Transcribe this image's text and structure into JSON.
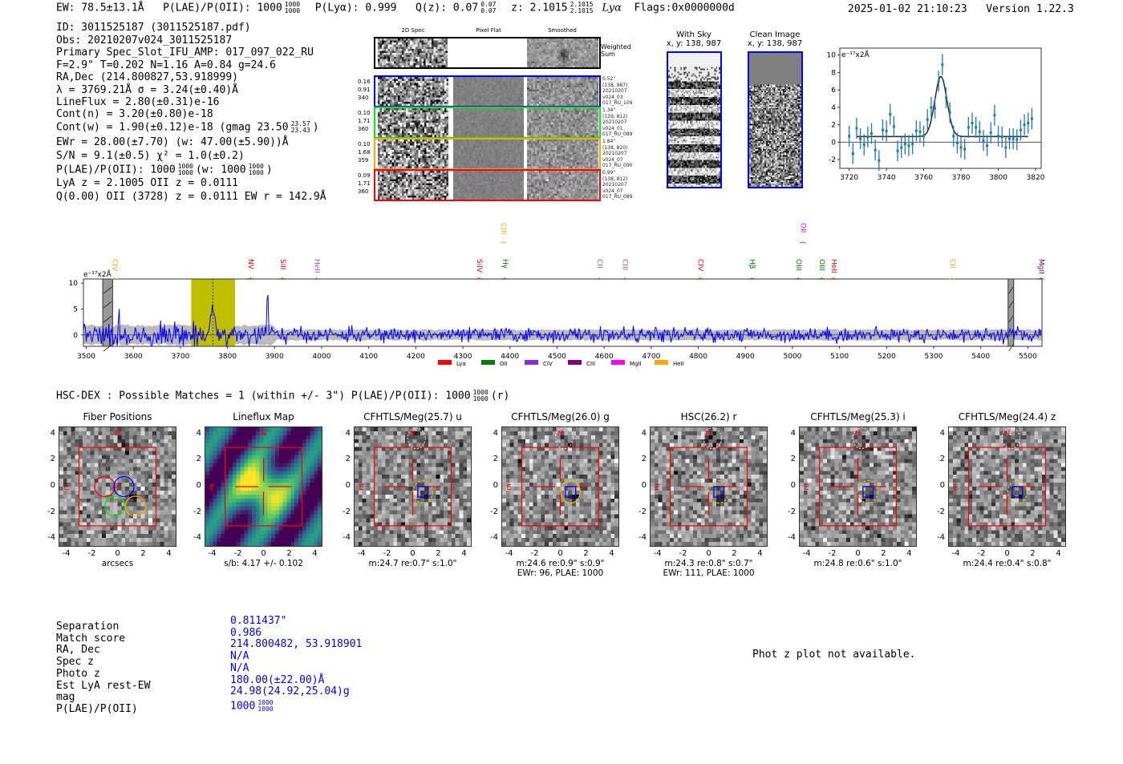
{
  "header": {
    "ew": "EW: 78.5±13.1Å",
    "plae_label": "P(LAE)/P(OII): 1000",
    "plae_sup": "1000",
    "plae_sub": "1000",
    "plya": "P(Lyα): 0.999",
    "qz_label": "Q(z): 0.07",
    "qz_sup": "0.07",
    "qz_sub": "0.07",
    "z_label": "z: 2.1015",
    "z_sup": "2.1015",
    "z_sub": "2.1015",
    "line": "Lyα",
    "flags": "Flags:0x0000000d",
    "datetime": "2025-01-02 21:10:23",
    "version": "Version 1.22.3"
  },
  "info": {
    "id": "ID: 3011525187 (3011525187.pdf)",
    "obs": "Obs: 20210207v024_3011525187",
    "primary": "Primary Spec_Slot_IFU_AMP: 017_097_022_RU",
    "ftna": "F=2.9\"  T=0.202  N=1.16  A=0.84  g=24.6",
    "radec": "RA,Dec (214.800827,53.918999)",
    "lambda": "λ = 3769.21Å   σ = 3.24(±0.40)Å",
    "lineflux": "LineFlux = 2.80(±0.31)e-16",
    "contn": "Cont(n) = 3.20(±0.80)e-18",
    "contw": "Cont(w) = 1.90(±0.12)e-18 (gmag 23.50",
    "contw_sup": "23.57",
    "contw_sub": "23.43",
    "contw_post": ")",
    "ewr": "EWr = 28.00(±7.70) (w: 47.00(±5.90))Å",
    "sn": "S/N = 9.1(±0.5)   χ² = 1.0(±0.2)",
    "plae": "P(LAE)/P(OII): 1000",
    "plae_sup": "1000",
    "plae_sub": "1000",
    "plae_mid": "(w: 1000",
    "plae_sup2": "1000",
    "plae_sub2": "1000",
    "plae_post": ")",
    "lyaz": "LyA z = 2.1005  OII z = 0.0111",
    "q": "Q(0.00) OII (3728) z = 0.0111  EW r = 142.9Å"
  },
  "spec2d": {
    "headers": [
      "2D Spec",
      "Pixel Flat",
      "Smoothed"
    ],
    "weighted_label": [
      "Weighted",
      "Sum"
    ],
    "rows": [
      {
        "color": "#0000ff",
        "left": [
          "0.16",
          "0.91",
          "340"
        ],
        "right": [
          "0.52\"",
          "(138, 987)",
          "20210207",
          "v024_03",
          "017_RU_109"
        ]
      },
      {
        "color": "#00ee00",
        "left": [
          "0.10",
          "1.71",
          "360"
        ],
        "right": [
          "1.34\"",
          "(139, 812)",
          "20210207",
          "v024_01",
          "017_RU_089"
        ]
      },
      {
        "color": "#ffa500",
        "left": [
          "0.10",
          "1.68",
          "359"
        ],
        "right": [
          "1.84\"",
          "(138, 820)",
          "20210207",
          "v024_07",
          "017_RU_090"
        ]
      },
      {
        "color": "#ff0000",
        "left": [
          "0.09",
          "1.71",
          "360"
        ],
        "right": [
          "0.99\"",
          "(138, 812)",
          "20210207",
          "v024_07",
          "017_RU_089"
        ]
      }
    ]
  },
  "ccd": {
    "with_sky": [
      "With Sky",
      "x, y: 138, 987"
    ],
    "clean": [
      "Clean Image",
      "x, y: 138, 987"
    ]
  },
  "chart_data": [
    {
      "type": "scatter",
      "title": "",
      "ylabel": "e⁻¹⁷x2Å",
      "xlim": [
        3715,
        3823
      ],
      "ylim": [
        -3,
        10.8
      ],
      "xticks": [
        "3720",
        "3740",
        "3760",
        "3780",
        "3800",
        "3820"
      ],
      "yticks": [
        "-2",
        "0",
        "2",
        "4",
        "6",
        "8",
        "10"
      ],
      "x": [
        3720,
        3722,
        3724,
        3726,
        3728,
        3730,
        3732,
        3734,
        3736,
        3738,
        3740,
        3742,
        3744,
        3746,
        3748,
        3750,
        3752,
        3754,
        3756,
        3758,
        3760,
        3762,
        3764,
        3766,
        3768,
        3770,
        3772,
        3774,
        3776,
        3778,
        3780,
        3782,
        3784,
        3786,
        3788,
        3790,
        3792,
        3794,
        3796,
        3798,
        3800,
        3802,
        3804,
        3806,
        3808,
        3810,
        3812,
        3814,
        3816,
        3818
      ],
      "y": [
        0.7,
        -1.3,
        1.6,
        0.4,
        -0.3,
        0.6,
        1.0,
        -0.9,
        -2.1,
        1.4,
        1.3,
        3.2,
        1.8,
        -1.0,
        -0.6,
        -0.2,
        -0.4,
        -0.2,
        1.3,
        1.2,
        0.7,
        2.6,
        4.0,
        3.9,
        7.0,
        8.9,
        5.1,
        3.4,
        0.7,
        -0.1,
        -0.6,
        -0.8,
        1.7,
        2.2,
        1.7,
        1.2,
        0.2,
        -0.4,
        1.1,
        3.1,
        0.7,
        0.6,
        -0.6,
        0.4,
        0.4,
        0.3,
        1.4,
        2.0,
        2.2,
        2.7
      ],
      "yerr": 1.2,
      "fit": {
        "center": 3769.21,
        "sigma": 3.24,
        "amplitude": 6.9,
        "continuum": 0.65,
        "range": [
          3724,
          3816
        ]
      }
    },
    {
      "type": "line",
      "ylabel": "e⁻¹⁷x2Å",
      "xlim": [
        3494,
        5530
      ],
      "ylim": [
        -2.2,
        10.8
      ],
      "xticks": [
        "3500",
        "3600",
        "3700",
        "3800",
        "3900",
        "4000",
        "4100",
        "4200",
        "4300",
        "4400",
        "4500",
        "4600",
        "4700",
        "4800",
        "4900",
        "5000",
        "5100",
        "5200",
        "5300",
        "5400",
        "5500"
      ],
      "yticks": [
        "0",
        "5",
        "10"
      ],
      "features": {
        "noise_sigma": 0.9,
        "peaks": [
          {
            "x": 3769,
            "y": 7.8
          },
          {
            "x": 3885,
            "y": 10.0
          }
        ],
        "error_band": [
          {
            "from": 3494,
            "to": 3900,
            "halfwidth": 1.8
          },
          {
            "from": 3900,
            "to": 5530,
            "halfwidth": 1.0
          }
        ],
        "highlight_range": [
          3723,
          3816
        ],
        "masked_ranges": [
          [
            3535,
            3556
          ],
          [
            5458,
            5470
          ]
        ],
        "marker_x": 3769
      },
      "line_labels": [
        {
          "name": "CIV",
          "x": 3561,
          "color": "#ffa500",
          "high": false
        },
        {
          "name": "NV",
          "x": 3850,
          "color": "#ff0000",
          "high": false
        },
        {
          "name": "SiII",
          "x": 3918,
          "color": "#ff0000",
          "high": false
        },
        {
          "name": "HeII",
          "x": 3991,
          "color": "#9d4edd",
          "high": false
        },
        {
          "name": "SiIV",
          "x": 4336,
          "color": "#ff0000",
          "high": false
        },
        {
          "name": "CIII",
          "x": 4387,
          "color": "#ffa500",
          "high": true
        },
        {
          "name": "Hγ",
          "x": 4390,
          "color": "#008000",
          "high": false
        },
        {
          "name": "CII",
          "x": 4591,
          "color": "#9d4edd",
          "high": false
        },
        {
          "name": "CIII",
          "x": 4645,
          "color": "#9d4edd",
          "high": false
        },
        {
          "name": "CIV",
          "x": 4805,
          "color": "#ff0000",
          "high": false
        },
        {
          "name": "Hβ",
          "x": 4915,
          "color": "#008000",
          "high": false
        },
        {
          "name": "OII",
          "x": 5023,
          "color": "#ff00ff",
          "high": true
        },
        {
          "name": "OIII",
          "x": 5014,
          "color": "#008000",
          "high": false
        },
        {
          "name": "OIII",
          "x": 5063,
          "color": "#008000",
          "high": false
        },
        {
          "name": "HeII",
          "x": 5089,
          "color": "#ff0000",
          "high": false
        },
        {
          "name": "CII",
          "x": 5340,
          "color": "#ffa500",
          "high": false
        },
        {
          "name": "MgII",
          "x": 5529,
          "color": "#800080",
          "high": false
        }
      ],
      "legend": [
        {
          "name": "Lyα",
          "color": "#ff0000"
        },
        {
          "name": "OII",
          "color": "#008000"
        },
        {
          "name": "CIV",
          "color": "#8a2be2"
        },
        {
          "name": "CIII",
          "color": "#800080"
        },
        {
          "name": "MgII",
          "color": "#ff00ff"
        },
        {
          "name": "HeII",
          "color": "#ffa500"
        }
      ]
    }
  ],
  "hscdex": {
    "text": "HSC-DEX : Possible Matches = 1 (within +/- 3\")  P(LAE)/P(OII): 1000",
    "sup": "1000",
    "sub": "1000",
    "post": "(r)"
  },
  "cutouts": [
    {
      "title": "Fiber Positions",
      "kind": "fiber",
      "captions": [
        "arcsecs"
      ]
    },
    {
      "title": "Lineflux Map",
      "kind": "flux",
      "captions": [
        "s/b: 4.17 +/- 0.102"
      ]
    },
    {
      "title": "CFHTLS/Meg(25.7) u",
      "kind": "img",
      "captions": [
        "m:24.7  re:0.7\"  s:1.0\""
      ]
    },
    {
      "title": "CFHTLS/Meg(26.0) g",
      "kind": "img",
      "captions": [
        "m:24.6  re:0.9\"  s:0.9\"",
        "EWr: 96, PLAE: 1000"
      ]
    },
    {
      "title": "HSC(26.2) r",
      "kind": "img",
      "captions": [
        "m:24.3  re:0.8\"  s:0.7\"",
        "EWr: 111, PLAE: 1000"
      ]
    },
    {
      "title": "CFHTLS/Meg(25.3) i",
      "kind": "img",
      "captions": [
        "m:24.8  re:0.6\"  s:1.0\""
      ]
    },
    {
      "title": "CFHTLS/Meg(24.4) z",
      "kind": "img",
      "captions": [
        "m:24.4  re:0.4\"  s:0.8\""
      ]
    }
  ],
  "cutout_axes": {
    "ticks": [
      "-4",
      "-2",
      "0",
      "2",
      "4"
    ],
    "north": "N",
    "east": "E"
  },
  "match": {
    "labels": [
      "Separation",
      "Match score",
      "RA, Dec",
      "Spec z",
      "Photo z",
      "Est LyA rest-EW",
      "mag",
      "P(LAE)/P(OII)"
    ],
    "values": [
      "0.811437\"",
      "0.986",
      "214.800482, 53.918901",
      "N/A",
      "N/A",
      "180.00(±22.00)Å",
      "24.98(24.92,25.04)g",
      "1000"
    ],
    "plae_sup": "1000",
    "plae_sub": "1000"
  },
  "photz_note": "Phot z plot not available."
}
